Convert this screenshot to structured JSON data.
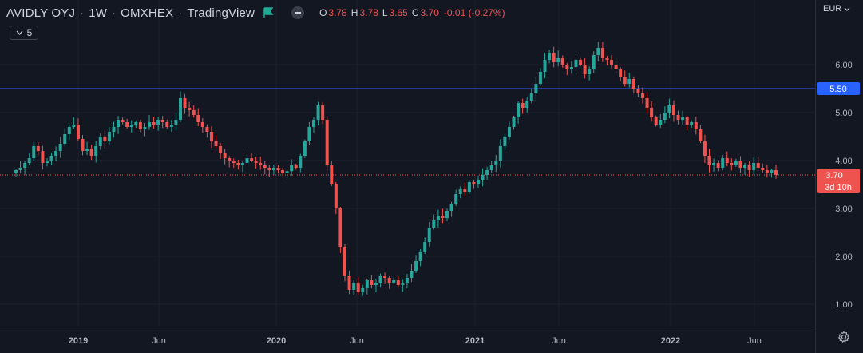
{
  "header": {
    "symbol": "AVIDLY OYJ",
    "interval": "1W",
    "exchange": "OMXHEX",
    "source": "TradingView",
    "ohlc": {
      "o_label": "O",
      "o": "3.78",
      "h_label": "H",
      "h": "3.78",
      "l_label": "L",
      "l": "3.65",
      "c_label": "C",
      "c": "3.70",
      "change": "-0.01 (-0.27%)"
    },
    "indicator_count": "5"
  },
  "currency": "EUR",
  "colors": {
    "up": "#26a69a",
    "down": "#ef5350",
    "hline": "#2962ff",
    "bg": "#131722",
    "grid": "#1e222d",
    "axis_text": "#b2b5be"
  },
  "chart_data": {
    "type": "candlestick",
    "y_axis": {
      "ticks": [
        1.0,
        2.0,
        3.0,
        4.0,
        5.0,
        6.0
      ],
      "tick_labels": [
        "1.00",
        "2.00",
        "3.00",
        "4.00",
        "5.00",
        "6.00"
      ]
    },
    "x_axis": {
      "tick_labels": [
        "2019",
        "Jun",
        "2020",
        "Jun",
        "2021",
        "Jun",
        "2022",
        "Jun"
      ]
    },
    "horizontal_line": {
      "price": 5.5,
      "label": "5.50"
    },
    "last_price": {
      "price": 3.7,
      "label": "3.70",
      "countdown": "3d 10h"
    },
    "closes": [
      3.8,
      3.85,
      3.95,
      4.05,
      4.3,
      4.2,
      3.95,
      4.0,
      4.1,
      4.2,
      4.35,
      4.55,
      4.7,
      4.75,
      4.45,
      4.2,
      4.25,
      4.1,
      4.3,
      4.5,
      4.4,
      4.6,
      4.7,
      4.85,
      4.8,
      4.7,
      4.75,
      4.8,
      4.65,
      4.7,
      4.8,
      4.75,
      4.85,
      4.8,
      4.7,
      4.75,
      4.85,
      5.3,
      5.1,
      5.05,
      4.95,
      4.8,
      4.7,
      4.6,
      4.4,
      4.3,
      4.15,
      4.05,
      4.0,
      3.95,
      3.9,
      3.95,
      4.05,
      4.0,
      3.95,
      3.9,
      3.85,
      3.8,
      3.85,
      3.8,
      3.75,
      3.78,
      3.9,
      3.85,
      4.1,
      4.4,
      4.7,
      4.85,
      5.15,
      4.85,
      3.9,
      3.5,
      3.0,
      2.2,
      1.6,
      1.3,
      1.45,
      1.25,
      1.35,
      1.5,
      1.4,
      1.45,
      1.6,
      1.55,
      1.45,
      1.5,
      1.4,
      1.45,
      1.55,
      1.7,
      1.9,
      2.1,
      2.3,
      2.6,
      2.75,
      2.85,
      2.8,
      2.95,
      3.1,
      3.3,
      3.4,
      3.35,
      3.55,
      3.5,
      3.6,
      3.7,
      3.8,
      3.9,
      4.0,
      4.3,
      4.5,
      4.7,
      4.9,
      5.2,
      5.1,
      5.25,
      5.4,
      5.6,
      5.85,
      6.1,
      6.25,
      6.05,
      6.15,
      6.0,
      5.9,
      5.95,
      6.1,
      6.0,
      5.8,
      5.9,
      6.2,
      6.35,
      6.15,
      6.1,
      6.0,
      5.9,
      5.75,
      5.6,
      5.7,
      5.5,
      5.4,
      5.3,
      5.1,
      4.9,
      4.75,
      4.85,
      5.0,
      5.15,
      4.95,
      4.85,
      4.9,
      4.75,
      4.8,
      4.65,
      4.4,
      4.1,
      3.9,
      3.95,
      3.85,
      4.05,
      3.95,
      3.9,
      4.0,
      3.85,
      3.9,
      3.8,
      3.95,
      3.85,
      3.8,
      3.75,
      3.8,
      3.7
    ]
  }
}
